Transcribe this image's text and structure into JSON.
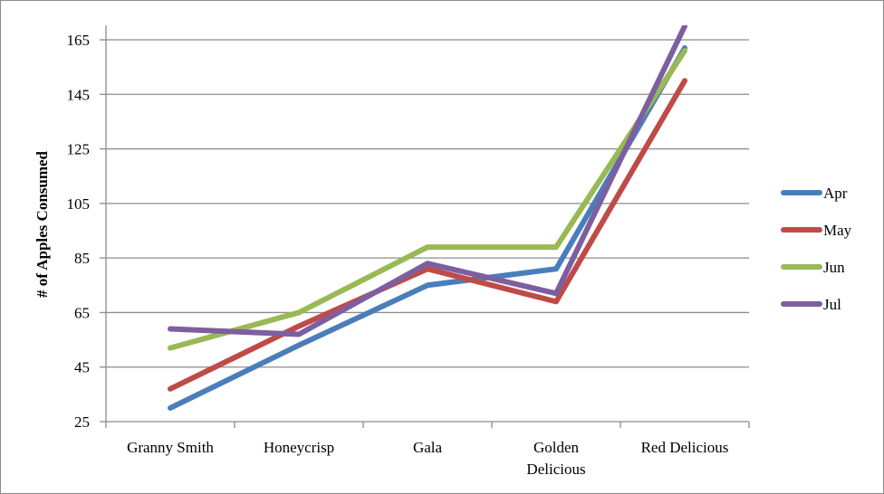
{
  "chart_data": {
    "type": "line",
    "title": "",
    "xlabel": "",
    "ylabel": "# of Apples Consumed",
    "ylim": [
      25,
      170
    ],
    "yticks": [
      25,
      45,
      65,
      85,
      105,
      125,
      145,
      165
    ],
    "categories": [
      [
        "Granny Smith"
      ],
      [
        "Honeycrisp"
      ],
      [
        "Gala"
      ],
      [
        "Golden",
        "Delicious"
      ],
      [
        "Red Delicious"
      ]
    ],
    "grid": true,
    "legend_position": "right",
    "series": [
      {
        "name": "Apr",
        "color": "#4a7ebb",
        "values": [
          30,
          53,
          75,
          81,
          162
        ]
      },
      {
        "name": "May",
        "color": "#be4b48",
        "values": [
          37,
          60,
          81,
          69,
          150
        ]
      },
      {
        "name": "Jun",
        "color": "#98b954",
        "values": [
          52,
          65,
          89,
          89,
          161
        ]
      },
      {
        "name": "Jul",
        "color": "#7d5fa0",
        "values": [
          59,
          57,
          83,
          72,
          170
        ]
      }
    ]
  }
}
